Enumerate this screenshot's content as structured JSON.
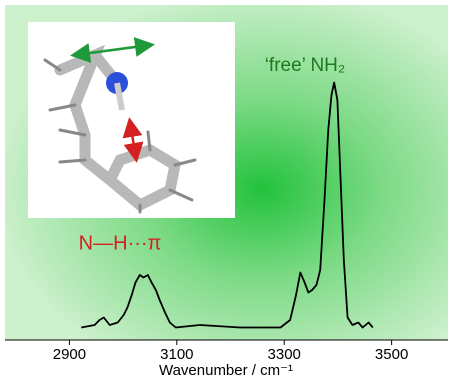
{
  "chart_data": {
    "type": "line",
    "annotations": [
      "‘free’ NH₂",
      "N—H···π"
    ],
    "xlabel": "Wavenumber / cm⁻¹",
    "x": [
      2922,
      2947,
      2956,
      2964,
      2975,
      2990,
      3001,
      3008,
      3016,
      3023,
      3031,
      3038,
      3046,
      3053,
      3061,
      3068,
      3078,
      3087,
      3098,
      3143,
      3218,
      3293,
      3311,
      3322,
      3330,
      3338,
      3345,
      3352,
      3360,
      3367,
      3375,
      3382,
      3388,
      3393,
      3399,
      3405,
      3411,
      3418,
      3427,
      3438,
      3446,
      3457,
      3465
    ],
    "series": [
      {
        "color": "#000000",
        "values": [
          0.01,
          0.02,
          0.04,
          0.05,
          0.02,
          0.03,
          0.06,
          0.09,
          0.14,
          0.19,
          0.22,
          0.21,
          0.22,
          0.19,
          0.16,
          0.12,
          0.07,
          0.03,
          0.01,
          0.02,
          0.01,
          0.01,
          0.04,
          0.14,
          0.23,
          0.19,
          0.15,
          0.16,
          0.18,
          0.24,
          0.52,
          0.8,
          0.94,
          0.99,
          0.92,
          0.6,
          0.28,
          0.05,
          0.02,
          0.03,
          0.01,
          0.03,
          0.01
        ]
      }
    ],
    "xlim": [
      2780,
      3605
    ],
    "ylim": [
      0,
      1
    ],
    "xticks": [
      2900,
      3100,
      3300,
      3500
    ]
  }
}
